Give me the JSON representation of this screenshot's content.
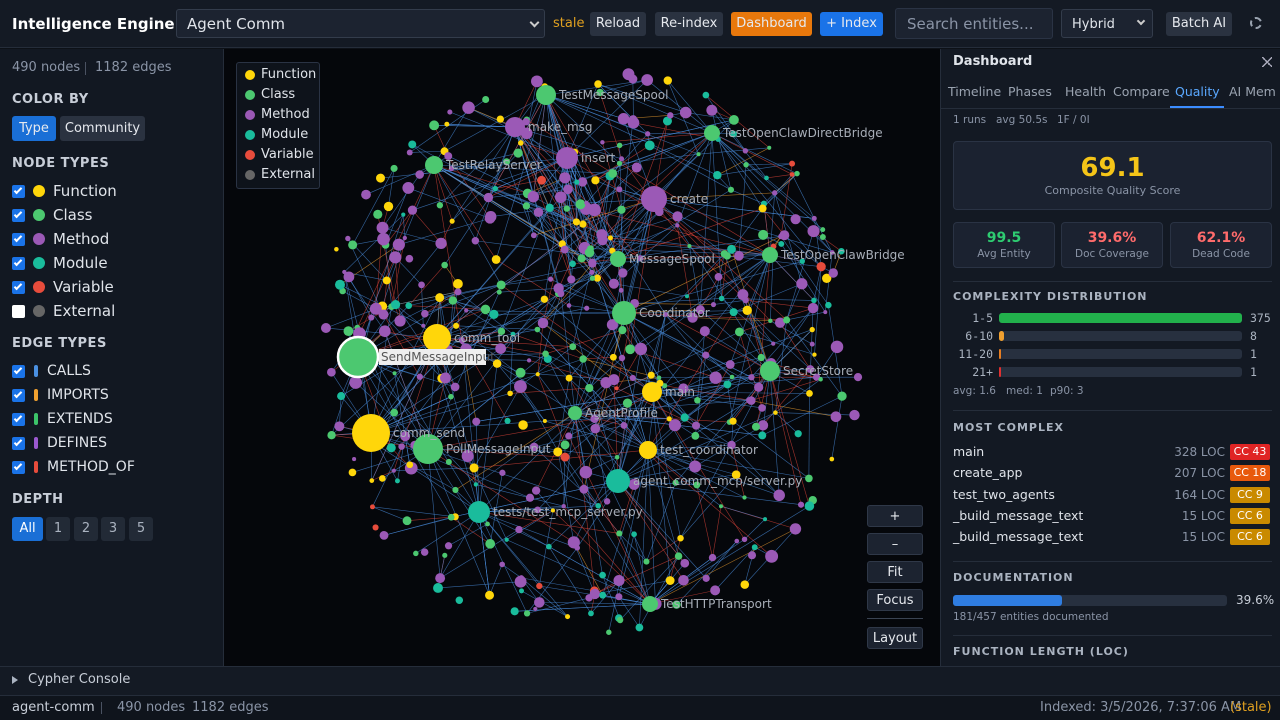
{
  "header": {
    "title": "Intelligence Engine",
    "project": "Agent Comm",
    "status": "stale",
    "buttons": [
      {
        "label": "Reload",
        "color": "#2a3240"
      },
      {
        "label": "Re-index",
        "color": "#2a3240"
      },
      {
        "label": "Dashboard",
        "color": "#e8780c"
      },
      {
        "label": "+ Index",
        "color": "#1a73e8"
      }
    ],
    "search_placeholder": "Search entities...",
    "mode": "Hybrid",
    "batch": "Batch AI"
  },
  "sidebar": {
    "nodes": "490 nodes",
    "edges": "1182 edges",
    "color_by": {
      "title": "COLOR BY",
      "options": [
        "Type",
        "Community"
      ],
      "active": 0
    },
    "node_types": {
      "title": "NODE TYPES",
      "items": [
        {
          "label": "Function",
          "color": "#ffd60a",
          "checked": true
        },
        {
          "label": "Class",
          "color": "#4cc870",
          "checked": true
        },
        {
          "label": "Method",
          "color": "#9b59b6",
          "checked": true
        },
        {
          "label": "Module",
          "color": "#1abc9c",
          "checked": true
        },
        {
          "label": "Variable",
          "color": "#e74c3c",
          "checked": true
        },
        {
          "label": "External",
          "color": "#666666",
          "checked": false
        }
      ]
    },
    "edge_types": {
      "title": "EDGE TYPES",
      "items": [
        {
          "label": "CALLS",
          "color": "#4a90e2",
          "checked": true
        },
        {
          "label": "IMPORTS",
          "color": "#f0a030",
          "checked": true
        },
        {
          "label": "EXTENDS",
          "color": "#3cc46a",
          "checked": true
        },
        {
          "label": "DEFINES",
          "color": "#9b59d0",
          "checked": true
        },
        {
          "label": "METHOD_OF",
          "color": "#e74c3c",
          "checked": true
        }
      ]
    },
    "depth": {
      "title": "DEPTH",
      "options": [
        "All",
        "1",
        "2",
        "3",
        "5"
      ],
      "active": 0
    }
  },
  "graph": {
    "legend": [
      "Function",
      "Class",
      "Method",
      "Module",
      "Variable",
      "External"
    ],
    "labels": [
      "TestMessageSpool",
      "make_msg",
      "TestOpenClawDirectBridge",
      "TestRelayServer",
      "insert",
      "create",
      "TestOpenClawBridge",
      "MessageSpool",
      "Coordinator",
      "comm_tool",
      "SendMessageInput",
      "SecretStore",
      "main",
      "AgentProfile",
      "comm_send",
      "PollMessageInput",
      "test_coordinator",
      "agent_comm_mcp/server.py",
      "tests/test_mcp_server.py",
      "TestHTTPTransport"
    ],
    "controls": [
      "+",
      "–",
      "Fit",
      "Focus",
      "Layout"
    ]
  },
  "dashboard": {
    "title": "Dashboard",
    "tabs": [
      "Timeline",
      "Phases",
      "Health",
      "Compare",
      "Quality",
      "AI Mem"
    ],
    "active_tab": 4,
    "meta": [
      "1 runs",
      "avg 50.5s",
      "1F / 0I"
    ],
    "score": {
      "value": "69.1",
      "label": "Composite Quality Score"
    },
    "metrics": [
      {
        "value": "99.5",
        "label": "Avg Entity",
        "color": "#2ecc71"
      },
      {
        "value": "39.6%",
        "label": "Doc Coverage",
        "color": "#ff6b6b"
      },
      {
        "value": "62.1%",
        "label": "Dead Code",
        "color": "#ff6b6b"
      }
    ],
    "complexity": {
      "title": "COMPLEXITY DISTRIBUTION",
      "bins": [
        "1-5",
        "6-10",
        "11-20",
        "21+"
      ],
      "values": [
        375,
        8,
        1,
        1
      ],
      "colors": [
        "#22b14c",
        "#f0a030",
        "#e67e22",
        "#e03030"
      ],
      "stats": [
        "avg: 1.6",
        "med: 1",
        "p90: 3"
      ]
    },
    "most_complex": {
      "title": "MOST COMPLEX",
      "rows": [
        {
          "name": "main",
          "loc": "328 LOC",
          "cc": "CC 43",
          "color": "#e02424"
        },
        {
          "name": "create_app",
          "loc": "207 LOC",
          "cc": "CC 18",
          "color": "#e8590c"
        },
        {
          "name": "test_two_agents",
          "loc": "164 LOC",
          "cc": "CC 9",
          "color": "#c98a00"
        },
        {
          "name": "_build_message_text",
          "loc": "15 LOC",
          "cc": "CC 6",
          "color": "#c98a00"
        },
        {
          "name": "_build_message_text",
          "loc": "15 LOC",
          "cc": "CC 6",
          "color": "#c98a00"
        }
      ]
    },
    "documentation": {
      "title": "DOCUMENTATION",
      "value": 39.6,
      "value_label": "39.6%",
      "caption": "181/457 entities documented"
    },
    "function_length": {
      "title": "FUNCTION LENGTH (LOC)"
    }
  },
  "console": "Cypher Console",
  "footer": {
    "project": "agent-comm",
    "nodes": "490 nodes",
    "edges": "1182 edges",
    "indexed": "Indexed: 3/5/2026, 7:37:06 AM",
    "status": "(stale)"
  }
}
